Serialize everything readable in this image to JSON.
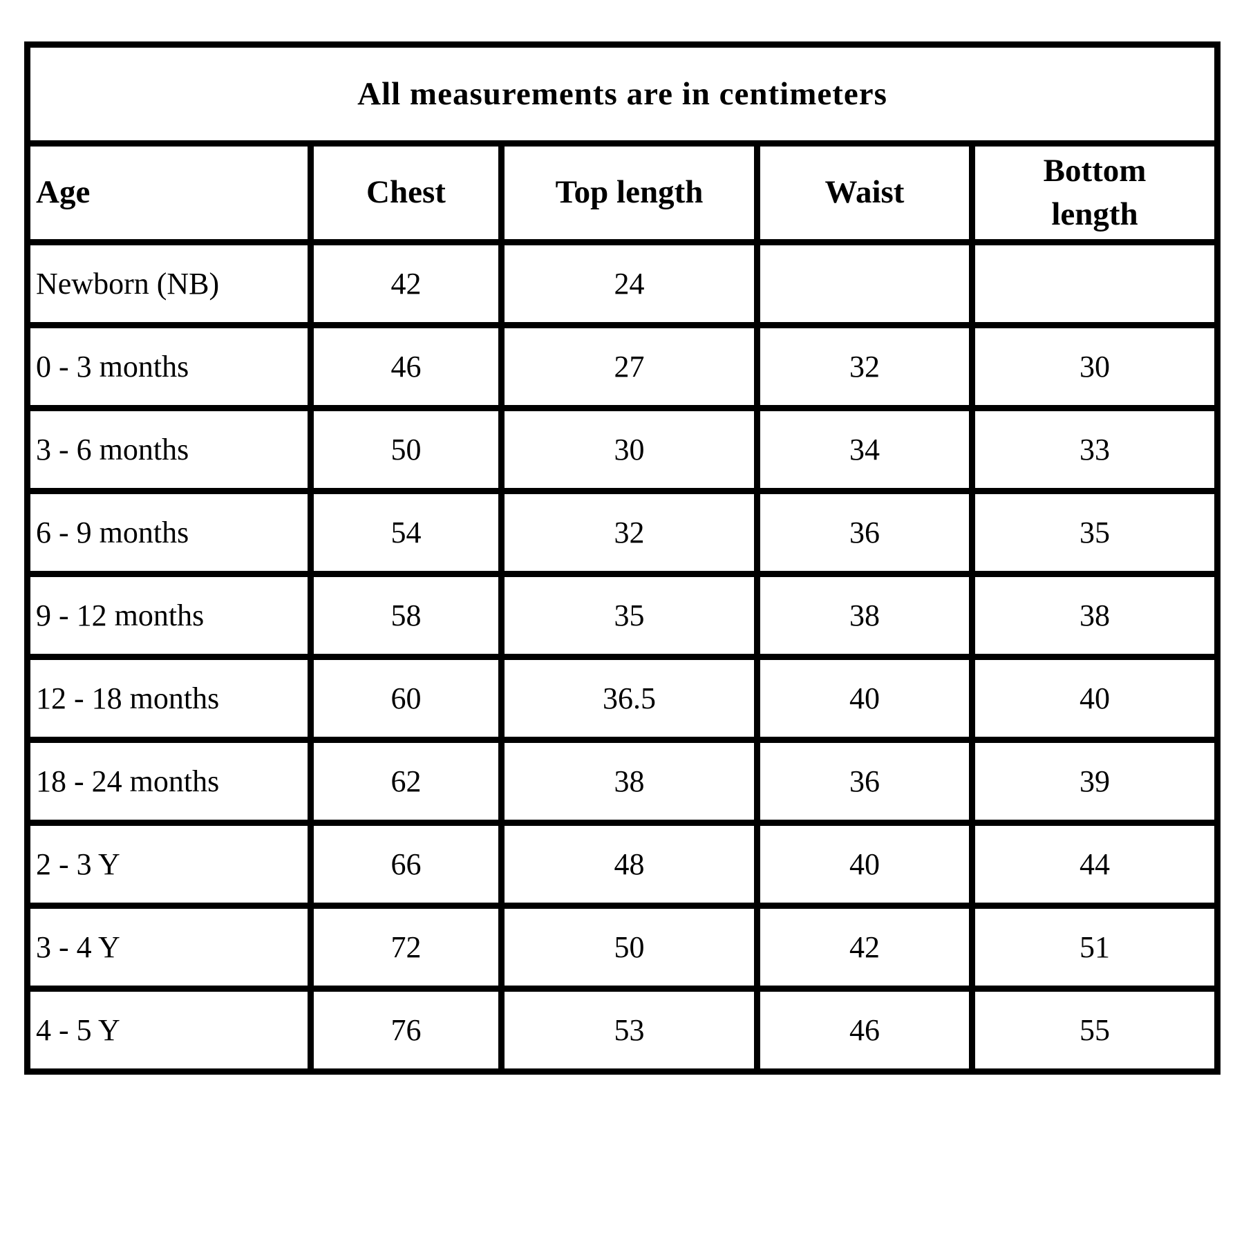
{
  "table": {
    "title": "All measurements are in centimeters",
    "columns": {
      "age": "Age",
      "chest": "Chest",
      "top_length": "Top length",
      "waist": "Waist",
      "bottom_length": "Bottom length"
    },
    "rows": [
      [
        "Newborn (NB)",
        "42",
        "24",
        "",
        ""
      ],
      [
        "0 - 3 months",
        "46",
        "27",
        "32",
        "30"
      ],
      [
        "3 - 6 months",
        "50",
        "30",
        "34",
        "33"
      ],
      [
        "6 - 9 months",
        "54",
        "32",
        "36",
        "35"
      ],
      [
        "9 - 12 months",
        "58",
        "35",
        "38",
        "38"
      ],
      [
        "12 - 18 months",
        "60",
        "36.5",
        "40",
        "40"
      ],
      [
        "18 - 24 months",
        "62",
        "38",
        "36",
        "39"
      ],
      [
        "2 - 3 Y",
        "66",
        "48",
        "40",
        "44"
      ],
      [
        "3 - 4 Y",
        "72",
        "50",
        "42",
        "51"
      ],
      [
        "4 - 5 Y",
        "76",
        "53",
        "46",
        "55"
      ]
    ],
    "colors": {
      "border": "#000000",
      "text": "#000000",
      "background": "#ffffff"
    }
  }
}
